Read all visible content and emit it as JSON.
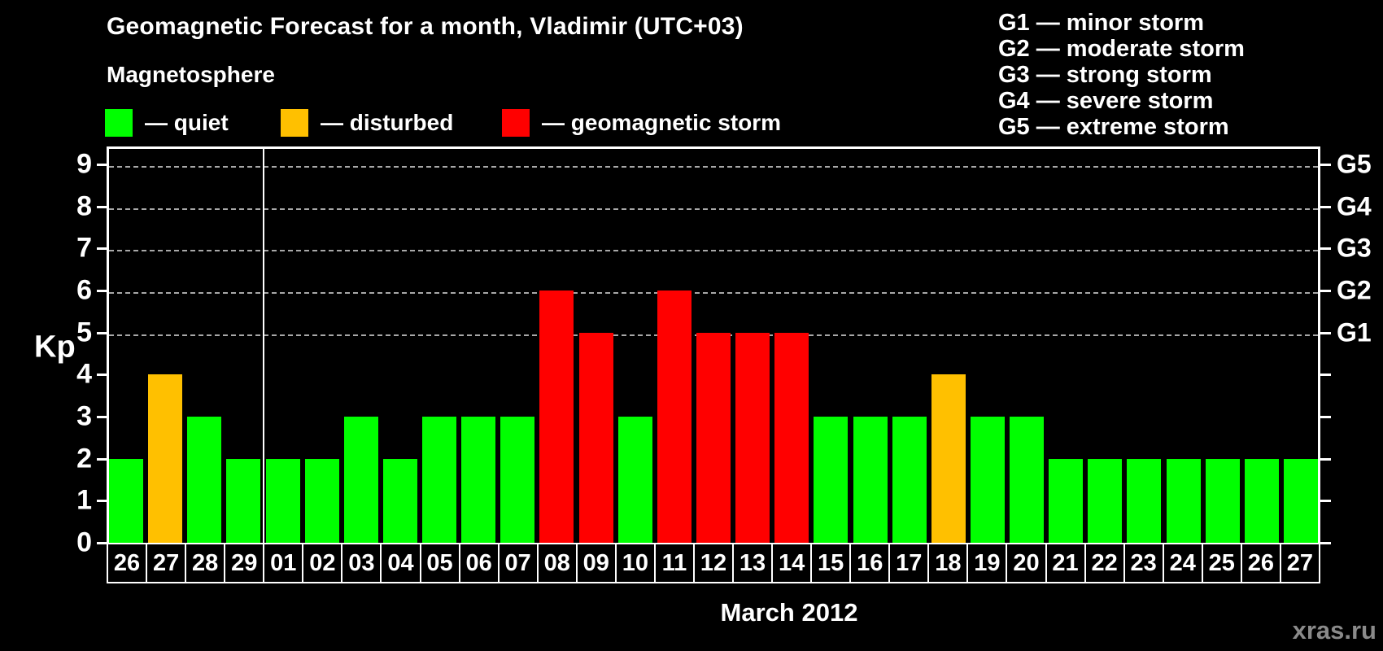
{
  "header": {
    "title": "Geomagnetic Forecast for a month, Vladimir (UTC+03)",
    "legend_title": "Magnetosphere"
  },
  "kp_legend": [
    {
      "status": "quiet",
      "label": "— quiet"
    },
    {
      "status": "disturbed",
      "label": "— disturbed"
    },
    {
      "status": "storm",
      "label": "— geomagnetic storm"
    }
  ],
  "g_legend": [
    "G1 — minor storm",
    "G2 — moderate storm",
    "G3 — strong storm",
    "G4 — severe storm",
    "G5 — extreme storm"
  ],
  "chart_data": {
    "type": "bar",
    "title": "Geomagnetic Forecast for a month, Vladimir (UTC+03)",
    "xlabel": "March 2012",
    "ylabel": "Kp",
    "ylim": [
      0,
      9.4
    ],
    "yticks": [
      0,
      1,
      2,
      3,
      4,
      5,
      6,
      7,
      8,
      9
    ],
    "gridline_values": [
      5,
      6,
      7,
      8,
      9
    ],
    "grid": "dashed horizontal at storm levels only",
    "right_axis_labels": [
      {
        "label": "G1",
        "value": 5
      },
      {
        "label": "G2",
        "value": 6
      },
      {
        "label": "G3",
        "value": 7
      },
      {
        "label": "G4",
        "value": 8
      },
      {
        "label": "G5",
        "value": 9
      }
    ],
    "month_separator_after_index": 3,
    "categories": [
      "26",
      "27",
      "28",
      "29",
      "01",
      "02",
      "03",
      "04",
      "05",
      "06",
      "07",
      "08",
      "09",
      "10",
      "11",
      "12",
      "13",
      "14",
      "15",
      "16",
      "17",
      "18",
      "19",
      "20",
      "21",
      "22",
      "23",
      "24",
      "25",
      "26",
      "27"
    ],
    "values": [
      2,
      4,
      3,
      2,
      2,
      2,
      3,
      2,
      3,
      3,
      3,
      6,
      5,
      3,
      6,
      5,
      5,
      5,
      3,
      3,
      3,
      4,
      3,
      3,
      2,
      2,
      2,
      2,
      2,
      2,
      2
    ],
    "statuses": [
      "quiet",
      "disturbed",
      "quiet",
      "quiet",
      "quiet",
      "quiet",
      "quiet",
      "quiet",
      "quiet",
      "quiet",
      "quiet",
      "storm",
      "storm",
      "quiet",
      "storm",
      "storm",
      "storm",
      "storm",
      "quiet",
      "quiet",
      "quiet",
      "disturbed",
      "quiet",
      "quiet",
      "quiet",
      "quiet",
      "quiet",
      "quiet",
      "quiet",
      "quiet",
      "quiet"
    ],
    "colors": {
      "quiet": "#00FF00",
      "disturbed": "#FFC000",
      "storm": "#FF0000",
      "axis": "#FFFFFF",
      "gridline": "#A8A8A8",
      "background": "#000000"
    }
  },
  "watermark": "xras.ru"
}
